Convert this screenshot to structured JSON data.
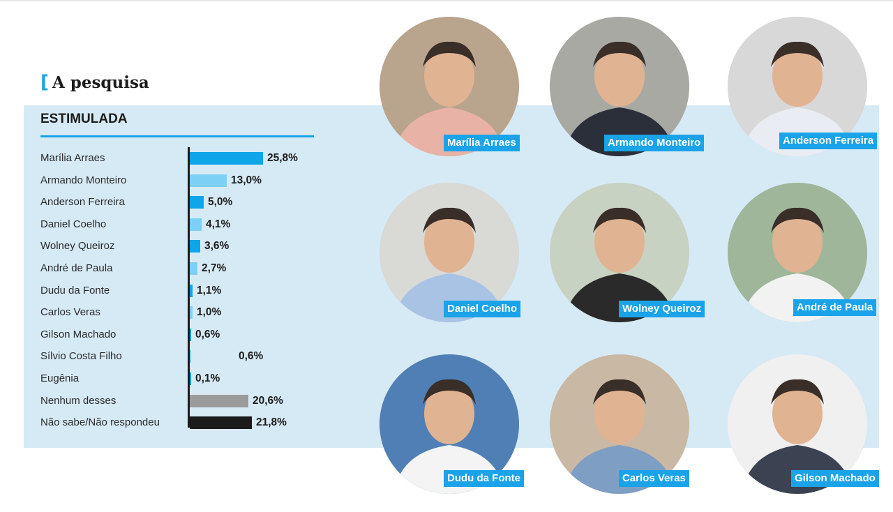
{
  "heading": {
    "bracket": "[",
    "title": "A pesquisa"
  },
  "chart_data": {
    "type": "bar",
    "title": "ESTIMULADA",
    "orientation": "horizontal",
    "unit": "%",
    "categories": [
      "Marília Arraes",
      "Armando Monteiro",
      "Anderson Ferreira",
      "Daniel Coelho",
      "Wolney Queiroz",
      "André de Paula",
      "Dudu da Fonte",
      "Carlos Veras",
      "Gilson Machado",
      "Sílvio Costa Filho",
      "Eugênia",
      "Nenhum desses",
      "Não sabe/Não respondeu"
    ],
    "values": [
      25.8,
      13.0,
      5.0,
      4.1,
      3.6,
      2.7,
      1.1,
      1.0,
      0.6,
      0.6,
      0.1,
      20.6,
      21.8
    ],
    "value_labels": [
      "25,8%",
      "13,0%",
      "5,0%",
      "4,1%",
      "3,6%",
      "2,7%",
      "1,1%",
      "1,0%",
      "0,6%",
      "0,6%",
      "0,1%",
      "20,6%",
      "21,8%"
    ],
    "bar_colors": [
      "#0ea5e9",
      "#7dd0f5",
      "#0ea5e9",
      "#7dd0f5",
      "#0ea5e9",
      "#7dd0f5",
      "#0ea5e9",
      "#7dd0f5",
      "#0ea5e9",
      "#7dd0f5",
      "#0ea5e9",
      "#9b9b9b",
      "#1b1b1b"
    ],
    "xlim": [
      0,
      26
    ],
    "grid": false
  },
  "candidates": [
    {
      "name": "Marília Arraes"
    },
    {
      "name": "Armando Monteiro"
    },
    {
      "name": "Anderson Ferreira"
    },
    {
      "name": "Daniel Coelho"
    },
    {
      "name": "Wolney Queiroz"
    },
    {
      "name": "André de Paula"
    },
    {
      "name": "Dudu da Fonte"
    },
    {
      "name": "Carlos Veras"
    },
    {
      "name": "Gilson Machado"
    }
  ],
  "colors": {
    "accent": "#1aa3e8",
    "panel": "#d6eaf6",
    "text": "#1b1b1b"
  }
}
